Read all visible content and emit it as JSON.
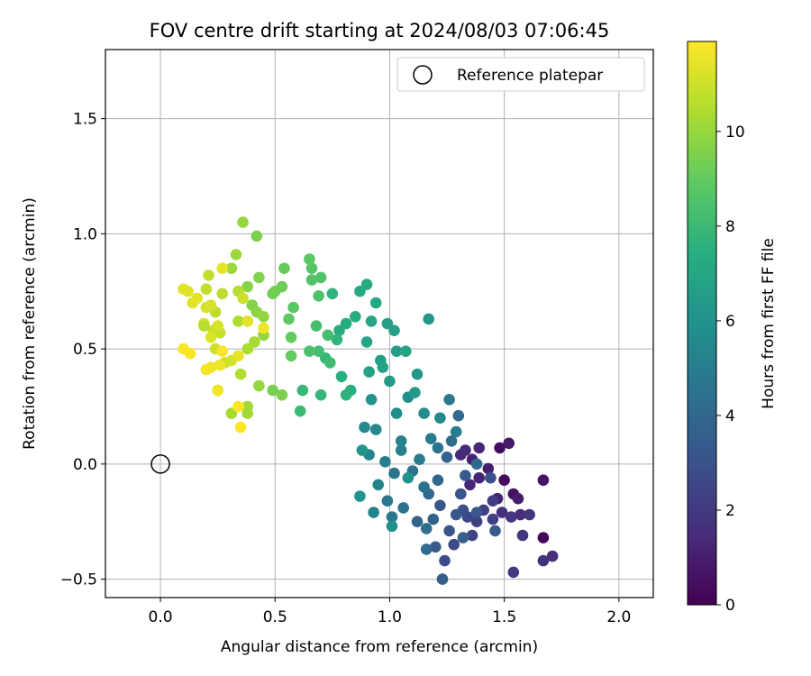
{
  "chart_data": {
    "type": "scatter",
    "title": "FOV centre drift starting at 2024/08/03 07:06:45",
    "xlabel": "Angular distance from reference (arcmin)",
    "ylabel": "Rotation from reference (arcmin)",
    "xlim": [
      -0.24,
      2.15
    ],
    "ylim": [
      -0.58,
      1.8
    ],
    "xticks": [
      0.0,
      0.5,
      1.0,
      1.5,
      2.0
    ],
    "xtick_labels": [
      "0.0",
      "0.5",
      "1.0",
      "1.5",
      "2.0"
    ],
    "yticks": [
      -0.5,
      0.0,
      0.5,
      1.0,
      1.5
    ],
    "ytick_labels": [
      "−0.5",
      "0.0",
      "0.5",
      "1.0",
      "1.5"
    ],
    "grid": true,
    "legend": {
      "label": "Reference platepar",
      "placement": "top-right",
      "marker": "hollow-circle"
    },
    "reference_point": {
      "x": 0.0,
      "y": 0.0
    },
    "colorbar": {
      "label": "Hours from first FF file",
      "colormap": "viridis",
      "range": [
        0,
        11.9
      ],
      "ticks": [
        0,
        2,
        4,
        6,
        8,
        10
      ],
      "tick_labels": [
        "0",
        "2",
        "4",
        "6",
        "8",
        "10"
      ]
    },
    "series": [
      {
        "points": [
          {
            "x": 1.5,
            "y": -0.07,
            "h": 0.3
          },
          {
            "x": 1.54,
            "y": -0.13,
            "h": 0.6
          },
          {
            "x": 1.48,
            "y": 0.07,
            "h": 0.4
          },
          {
            "x": 1.52,
            "y": 0.09,
            "h": 0.8
          },
          {
            "x": 1.67,
            "y": -0.32,
            "h": 0.2
          },
          {
            "x": 1.67,
            "y": -0.07,
            "h": 0.6
          },
          {
            "x": 1.56,
            "y": -0.15,
            "h": 0.9
          },
          {
            "x": 1.43,
            "y": -0.02,
            "h": 1.0
          },
          {
            "x": 1.36,
            "y": 0.02,
            "h": 1.1
          },
          {
            "x": 1.39,
            "y": -0.06,
            "h": 1.2
          },
          {
            "x": 1.35,
            "y": -0.09,
            "h": 1.3
          },
          {
            "x": 1.47,
            "y": -0.15,
            "h": 1.2
          },
          {
            "x": 1.33,
            "y": 0.06,
            "h": 1.4
          },
          {
            "x": 1.31,
            "y": 0.04,
            "h": 1.4
          },
          {
            "x": 1.39,
            "y": 0.07,
            "h": 1.3
          },
          {
            "x": 1.57,
            "y": -0.22,
            "h": 1.5
          },
          {
            "x": 1.49,
            "y": -0.21,
            "h": 1.6
          },
          {
            "x": 1.71,
            "y": -0.4,
            "h": 1.6
          },
          {
            "x": 1.67,
            "y": -0.42,
            "h": 1.7
          },
          {
            "x": 1.58,
            "y": -0.31,
            "h": 1.8
          },
          {
            "x": 1.61,
            "y": -0.22,
            "h": 1.9
          },
          {
            "x": 1.53,
            "y": -0.23,
            "h": 1.9
          },
          {
            "x": 1.54,
            "y": -0.47,
            "h": 2.0
          },
          {
            "x": 1.45,
            "y": -0.16,
            "h": 2.1
          },
          {
            "x": 1.41,
            "y": -0.2,
            "h": 2.2
          },
          {
            "x": 1.45,
            "y": -0.24,
            "h": 2.3
          },
          {
            "x": 1.38,
            "y": -0.25,
            "h": 2.3
          },
          {
            "x": 1.36,
            "y": -0.31,
            "h": 2.4
          },
          {
            "x": 1.34,
            "y": -0.23,
            "h": 2.5
          },
          {
            "x": 1.28,
            "y": -0.35,
            "h": 2.6
          },
          {
            "x": 1.24,
            "y": -0.42,
            "h": 2.7
          },
          {
            "x": 1.32,
            "y": -0.2,
            "h": 2.8
          },
          {
            "x": 1.44,
            "y": -0.06,
            "h": 2.9
          },
          {
            "x": 1.31,
            "y": -0.13,
            "h": 3.0
          },
          {
            "x": 1.26,
            "y": -0.29,
            "h": 3.1
          },
          {
            "x": 1.29,
            "y": -0.22,
            "h": 3.2
          },
          {
            "x": 1.22,
            "y": -0.18,
            "h": 3.2
          },
          {
            "x": 1.38,
            "y": -0.21,
            "h": 3.3
          },
          {
            "x": 1.46,
            "y": -0.29,
            "h": 3.4
          },
          {
            "x": 1.33,
            "y": -0.05,
            "h": 3.4
          },
          {
            "x": 1.2,
            "y": -0.36,
            "h": 3.5
          },
          {
            "x": 1.23,
            "y": -0.5,
            "h": 3.5
          },
          {
            "x": 1.32,
            "y": -0.32,
            "h": 3.6
          },
          {
            "x": 1.19,
            "y": -0.24,
            "h": 3.7
          },
          {
            "x": 1.25,
            "y": 0.03,
            "h": 3.7
          },
          {
            "x": 1.12,
            "y": -0.25,
            "h": 3.8
          },
          {
            "x": 1.17,
            "y": -0.13,
            "h": 3.9
          },
          {
            "x": 1.21,
            "y": -0.07,
            "h": 3.9
          },
          {
            "x": 1.38,
            "y": 0.0,
            "h": 4.0
          },
          {
            "x": 1.3,
            "y": 0.21,
            "h": 4.1
          },
          {
            "x": 1.27,
            "y": 0.1,
            "h": 4.2
          },
          {
            "x": 1.16,
            "y": -0.37,
            "h": 4.2
          },
          {
            "x": 1.16,
            "y": -0.28,
            "h": 4.3
          },
          {
            "x": 1.06,
            "y": -0.19,
            "h": 4.4
          },
          {
            "x": 1.15,
            "y": -0.1,
            "h": 4.4
          },
          {
            "x": 1.1,
            "y": -0.03,
            "h": 4.5
          },
          {
            "x": 1.21,
            "y": 0.07,
            "h": 4.5
          },
          {
            "x": 1.02,
            "y": -0.04,
            "h": 4.6
          },
          {
            "x": 0.99,
            "y": -0.16,
            "h": 4.7
          },
          {
            "x": 1.01,
            "y": -0.23,
            "h": 4.7
          },
          {
            "x": 1.26,
            "y": 0.28,
            "h": 4.8
          },
          {
            "x": 1.18,
            "y": 0.11,
            "h": 4.9
          },
          {
            "x": 1.29,
            "y": 0.14,
            "h": 4.9
          },
          {
            "x": 1.13,
            "y": 0.02,
            "h": 5.0
          },
          {
            "x": 1.05,
            "y": 0.06,
            "h": 5.1
          },
          {
            "x": 0.98,
            "y": 0.01,
            "h": 5.1
          },
          {
            "x": 1.05,
            "y": 0.1,
            "h": 5.2
          },
          {
            "x": 0.95,
            "y": -0.09,
            "h": 5.3
          },
          {
            "x": 0.93,
            "y": -0.21,
            "h": 5.3
          },
          {
            "x": 0.91,
            "y": 0.04,
            "h": 5.4
          },
          {
            "x": 0.94,
            "y": 0.15,
            "h": 5.5
          },
          {
            "x": 0.89,
            "y": 0.16,
            "h": 5.6
          },
          {
            "x": 1.22,
            "y": 0.2,
            "h": 5.6
          },
          {
            "x": 1.15,
            "y": 0.22,
            "h": 5.7
          },
          {
            "x": 1.08,
            "y": 0.29,
            "h": 5.8
          },
          {
            "x": 1.03,
            "y": 0.22,
            "h": 5.8
          },
          {
            "x": 1.01,
            "y": -0.27,
            "h": 5.9
          },
          {
            "x": 1.08,
            "y": -0.06,
            "h": 6.0
          },
          {
            "x": 0.87,
            "y": -0.14,
            "h": 6.1
          },
          {
            "x": 0.92,
            "y": 0.28,
            "h": 6.1
          },
          {
            "x": 0.88,
            "y": 0.06,
            "h": 6.2
          },
          {
            "x": 1.17,
            "y": 0.63,
            "h": 6.3
          },
          {
            "x": 1.12,
            "y": 0.39,
            "h": 6.3
          },
          {
            "x": 1.11,
            "y": 0.31,
            "h": 6.4
          },
          {
            "x": 1.03,
            "y": 0.49,
            "h": 6.5
          },
          {
            "x": 1.0,
            "y": 0.36,
            "h": 6.5
          },
          {
            "x": 0.96,
            "y": 0.45,
            "h": 6.6
          },
          {
            "x": 0.99,
            "y": 0.61,
            "h": 6.7
          },
          {
            "x": 1.02,
            "y": 0.58,
            "h": 6.7
          },
          {
            "x": 0.91,
            "y": 0.4,
            "h": 6.8
          },
          {
            "x": 0.97,
            "y": 0.42,
            "h": 6.8
          },
          {
            "x": 1.07,
            "y": 0.49,
            "h": 6.9
          },
          {
            "x": 0.9,
            "y": 0.53,
            "h": 7.0
          },
          {
            "x": 0.92,
            "y": 0.62,
            "h": 7.0
          },
          {
            "x": 0.94,
            "y": 0.7,
            "h": 7.1
          },
          {
            "x": 0.87,
            "y": 0.75,
            "h": 7.2
          },
          {
            "x": 0.9,
            "y": 0.78,
            "h": 7.2
          },
          {
            "x": 0.81,
            "y": 0.61,
            "h": 7.3
          },
          {
            "x": 0.85,
            "y": 0.64,
            "h": 7.4
          },
          {
            "x": 0.78,
            "y": 0.58,
            "h": 7.4
          },
          {
            "x": 0.79,
            "y": 0.38,
            "h": 7.5
          },
          {
            "x": 0.83,
            "y": 0.32,
            "h": 7.5
          },
          {
            "x": 0.81,
            "y": 0.3,
            "h": 7.6
          },
          {
            "x": 0.75,
            "y": 0.74,
            "h": 7.7
          },
          {
            "x": 0.77,
            "y": 0.54,
            "h": 7.7
          },
          {
            "x": 0.72,
            "y": 0.46,
            "h": 7.8
          },
          {
            "x": 0.7,
            "y": 0.3,
            "h": 7.9
          },
          {
            "x": 0.62,
            "y": 0.32,
            "h": 7.9
          },
          {
            "x": 0.61,
            "y": 0.23,
            "h": 8.0
          },
          {
            "x": 0.74,
            "y": 0.44,
            "h": 8.1
          },
          {
            "x": 0.73,
            "y": 0.56,
            "h": 8.2
          },
          {
            "x": 0.69,
            "y": 0.49,
            "h": 8.2
          },
          {
            "x": 0.68,
            "y": 0.6,
            "h": 8.3
          },
          {
            "x": 0.65,
            "y": 0.49,
            "h": 8.4
          },
          {
            "x": 0.69,
            "y": 0.73,
            "h": 8.5
          },
          {
            "x": 0.7,
            "y": 0.81,
            "h": 8.5
          },
          {
            "x": 0.66,
            "y": 0.8,
            "h": 8.6
          },
          {
            "x": 0.66,
            "y": 0.85,
            "h": 8.7
          },
          {
            "x": 0.65,
            "y": 0.89,
            "h": 8.8
          },
          {
            "x": 0.58,
            "y": 0.68,
            "h": 8.8
          },
          {
            "x": 0.56,
            "y": 0.63,
            "h": 8.9
          },
          {
            "x": 0.57,
            "y": 0.55,
            "h": 9.0
          },
          {
            "x": 0.57,
            "y": 0.47,
            "h": 9.0
          },
          {
            "x": 0.54,
            "y": 0.85,
            "h": 9.1
          },
          {
            "x": 0.53,
            "y": 0.77,
            "h": 9.2
          },
          {
            "x": 0.5,
            "y": 0.75,
            "h": 9.3
          },
          {
            "x": 0.49,
            "y": 0.74,
            "h": 9.3
          },
          {
            "x": 0.49,
            "y": 0.32,
            "h": 9.4
          },
          {
            "x": 0.53,
            "y": 0.3,
            "h": 9.5
          },
          {
            "x": 0.42,
            "y": 0.99,
            "h": 9.5
          },
          {
            "x": 0.43,
            "y": 0.81,
            "h": 9.6
          },
          {
            "x": 0.4,
            "y": 0.69,
            "h": 9.6
          },
          {
            "x": 0.38,
            "y": 0.77,
            "h": 9.7
          },
          {
            "x": 0.42,
            "y": 0.66,
            "h": 9.8
          },
          {
            "x": 0.45,
            "y": 0.64,
            "h": 9.9
          },
          {
            "x": 0.45,
            "y": 0.56,
            "h": 9.9
          },
          {
            "x": 0.43,
            "y": 0.34,
            "h": 10.0
          },
          {
            "x": 0.36,
            "y": 1.05,
            "h": 10.0
          },
          {
            "x": 0.33,
            "y": 0.91,
            "h": 10.1
          },
          {
            "x": 0.31,
            "y": 0.85,
            "h": 10.1
          },
          {
            "x": 0.38,
            "y": 0.25,
            "h": 10.2
          },
          {
            "x": 0.38,
            "y": 0.22,
            "h": 10.2
          },
          {
            "x": 0.31,
            "y": 0.22,
            "h": 10.3
          },
          {
            "x": 0.41,
            "y": 0.53,
            "h": 10.3
          },
          {
            "x": 0.34,
            "y": 0.62,
            "h": 10.4
          },
          {
            "x": 0.38,
            "y": 0.5,
            "h": 10.4
          },
          {
            "x": 0.35,
            "y": 0.39,
            "h": 10.5
          },
          {
            "x": 0.25,
            "y": 0.32,
            "h": 10.5
          },
          {
            "x": 0.34,
            "y": 0.75,
            "h": 10.6
          },
          {
            "x": 0.27,
            "y": 0.74,
            "h": 10.7
          },
          {
            "x": 0.24,
            "y": 0.66,
            "h": 10.7
          },
          {
            "x": 0.2,
            "y": 0.76,
            "h": 10.8
          },
          {
            "x": 0.21,
            "y": 0.82,
            "h": 10.8
          },
          {
            "x": 0.23,
            "y": 0.58,
            "h": 10.9
          },
          {
            "x": 0.26,
            "y": 0.57,
            "h": 10.9
          },
          {
            "x": 0.24,
            "y": 0.5,
            "h": 11.0
          },
          {
            "x": 0.28,
            "y": 0.44,
            "h": 11.0
          },
          {
            "x": 0.31,
            "y": 0.45,
            "h": 11.1
          },
          {
            "x": 0.2,
            "y": 0.68,
            "h": 11.1
          },
          {
            "x": 0.22,
            "y": 0.69,
            "h": 11.2
          },
          {
            "x": 0.19,
            "y": 0.61,
            "h": 11.2
          },
          {
            "x": 0.14,
            "y": 0.7,
            "h": 11.3
          },
          {
            "x": 0.12,
            "y": 0.75,
            "h": 11.3
          },
          {
            "x": 0.1,
            "y": 0.76,
            "h": 11.4
          },
          {
            "x": 0.16,
            "y": 0.72,
            "h": 11.4
          },
          {
            "x": 0.27,
            "y": 0.85,
            "h": 11.5
          },
          {
            "x": 0.34,
            "y": 0.47,
            "h": 11.5
          },
          {
            "x": 0.26,
            "y": 0.43,
            "h": 11.6
          },
          {
            "x": 0.22,
            "y": 0.42,
            "h": 11.6
          },
          {
            "x": 0.2,
            "y": 0.41,
            "h": 11.7
          },
          {
            "x": 0.25,
            "y": 0.32,
            "h": 11.7
          },
          {
            "x": 0.13,
            "y": 0.48,
            "h": 11.8
          },
          {
            "x": 0.1,
            "y": 0.5,
            "h": 11.8
          },
          {
            "x": 0.27,
            "y": 0.49,
            "h": 11.8
          },
          {
            "x": 0.34,
            "y": 0.25,
            "h": 11.9
          },
          {
            "x": 0.35,
            "y": 0.16,
            "h": 11.9
          },
          {
            "x": 0.36,
            "y": 0.72,
            "h": 11.0
          },
          {
            "x": 0.38,
            "y": 0.62,
            "h": 11.4
          },
          {
            "x": 0.45,
            "y": 0.59,
            "h": 11.6
          },
          {
            "x": 0.25,
            "y": 0.6,
            "h": 11.2
          },
          {
            "x": 0.19,
            "y": 0.6,
            "h": 10.6
          },
          {
            "x": 0.22,
            "y": 0.55,
            "h": 11.3
          }
        ]
      }
    ]
  }
}
